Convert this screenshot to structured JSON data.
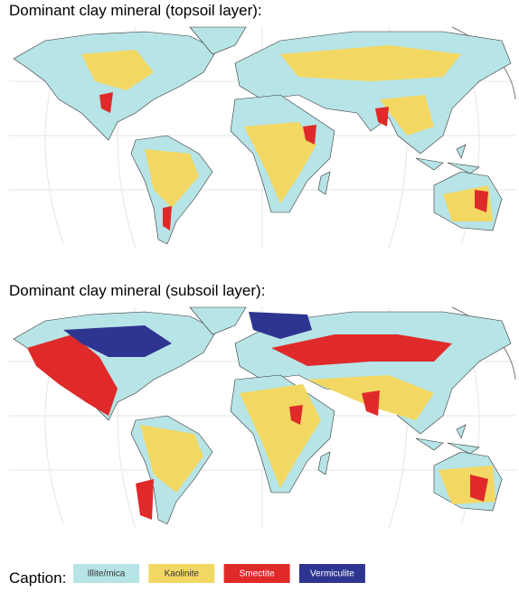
{
  "maps": [
    {
      "title": "Dominant clay mineral (topsoil layer):"
    },
    {
      "title": "Dominant clay mineral (subsoil layer):"
    }
  ],
  "legend": {
    "label": "Caption:",
    "items": [
      {
        "label": "Illite/mica",
        "color": "#b7e4e6"
      },
      {
        "label": "Kaolinite",
        "color": "#f2d862"
      },
      {
        "label": "Smectite",
        "color": "#e02a2a"
      },
      {
        "label": "Vermiculite",
        "color": "#2e3591"
      }
    ]
  }
}
